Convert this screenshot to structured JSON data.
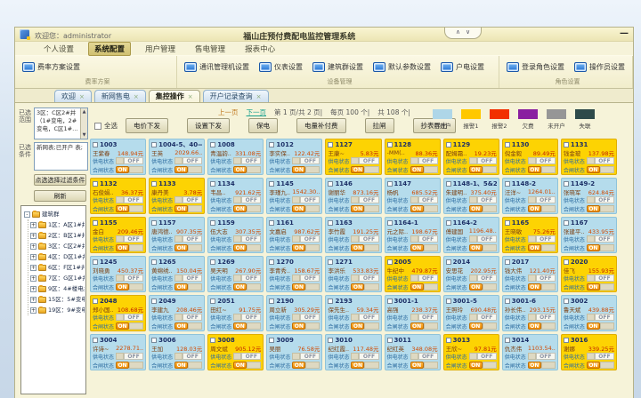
{
  "window": {
    "welcome": "欢迎您：administrator",
    "title": "福山庄预付费配电监控管理系统",
    "controls": {
      "collapse": "∧",
      "expand": "∨",
      "minimize": "—"
    }
  },
  "menu": {
    "items": [
      {
        "label": "个人设置",
        "active": false
      },
      {
        "label": "系统配置",
        "active": true
      },
      {
        "label": "用户管理",
        "active": false
      },
      {
        "label": "售电管理",
        "active": false
      },
      {
        "label": "报表中心",
        "active": false
      }
    ]
  },
  "ribbon": {
    "groups": [
      {
        "label": "费率方案",
        "buttons": [
          "费率方案设置"
        ]
      },
      {
        "label": "设备管理",
        "buttons": [
          "通讯管理机设置",
          "仪表设置",
          "建筑群设置",
          "默认参数设置",
          "户电设置"
        ]
      },
      {
        "label": "角色设置",
        "buttons": [
          "登录角色设置",
          "操作员设置"
        ]
      }
    ]
  },
  "tabs": [
    {
      "label": "欢迎",
      "active": false
    },
    {
      "label": "新网售电",
      "active": false
    },
    {
      "label": "集控操作",
      "active": true
    },
    {
      "label": "开户记录查询",
      "active": false
    }
  ],
  "sidebar": {
    "range_label": "已选范围",
    "range_lines": [
      "3区：C区2#井",
      "（1#变电，2#",
      "变电，C区1#…"
    ],
    "filter_label": "已选条件",
    "filter_text": "新网表;已开户 表;",
    "filter_button": "点选选择过滤条件",
    "refresh_button": "刷新",
    "tree": {
      "root": "建筑群",
      "nodes": [
        "1区：A区1#井",
        "2区：B区1#井(B区1",
        "3区：C区2#井（1#",
        "4区：D区1#井（D区",
        "6区：F区1#井（F区",
        "7区：G区1#井",
        "9区：4#楼电井（4#",
        "15区：5#变电站（3#",
        "19区：9#变电站（2"
      ]
    }
  },
  "toolbar": {
    "pagination": {
      "prev": "上一页",
      "next": "下一页",
      "page_info": "第 1 页/共 2 页|",
      "per_page": "每页 100 个|",
      "total": "共 108 个|"
    },
    "select_all": "全选",
    "buttons": [
      "电价下发",
      "设置下发",
      "保电",
      "电量补付费",
      "拉闸",
      "抄表导出"
    ]
  },
  "legend": {
    "items": [
      {
        "label": "已开户",
        "color": "#aed6e8"
      },
      {
        "label": "报警1",
        "color": "#ffc800"
      },
      {
        "label": "报警2",
        "color": "#f23000"
      },
      {
        "label": "欠费",
        "color": "#8a1fa0"
      },
      {
        "label": "未开户",
        "color": "#969696"
      },
      {
        "label": "失联",
        "color": "#2e4a4a"
      }
    ]
  },
  "meters": {
    "labels": {
      "supply": "供电状态",
      "breaker": "合闸状态",
      "on": "ON",
      "off": "OFF"
    },
    "palette": {
      "open": "#b5dcec",
      "alarm": "#fdd303"
    },
    "cards": [
      {
        "room": "1003",
        "name": "王紫春",
        "amount": "148.94元",
        "state": "open"
      },
      {
        "room": "1004-5、40—",
        "name": "王英",
        "amount": "2029.66..",
        "state": "open"
      },
      {
        "room": "1008",
        "name": "青温韵..",
        "amount": "331.08元",
        "state": "open"
      },
      {
        "room": "1012",
        "name": "李实保..",
        "amount": "122.42元",
        "state": "open"
      },
      {
        "room": "1127",
        "name": "王康~",
        "amount": "5.83元",
        "state": "alarm"
      },
      {
        "room": "1128",
        "name": "-MM(..",
        "amount": "88.36元",
        "state": "alarm"
      },
      {
        "room": "1129",
        "name": "配姆霜..",
        "amount": "19.23元",
        "state": "alarm"
      },
      {
        "room": "1130",
        "name": "倪金毅",
        "amount": "89.49元",
        "state": "alarm"
      },
      {
        "room": "1131",
        "name": "钱金玻",
        "amount": "137.98元",
        "state": "alarm"
      },
      {
        "room": "1132",
        "name": "石俊娟..",
        "amount": "36.37元",
        "state": "alarm"
      },
      {
        "room": "1133",
        "name": "康丹美",
        "amount": "3.78元",
        "state": "alarm"
      },
      {
        "room": "1134",
        "name": "韦昌..",
        "amount": "921.62元",
        "state": "open"
      },
      {
        "room": "1145",
        "name": "李瑾九..",
        "amount": "1542.30..",
        "state": "open"
      },
      {
        "room": "1146",
        "name": "谢丽华",
        "amount": "873.16元",
        "state": "open"
      },
      {
        "room": "1147",
        "name": "杨帆",
        "amount": "685.52元",
        "state": "open"
      },
      {
        "room": "1148-1、5&2",
        "name": "朱建明..",
        "amount": "375.40元",
        "state": "open"
      },
      {
        "room": "1148-2",
        "name": "汪洋~",
        "amount": "1264.01..",
        "state": "open"
      },
      {
        "room": "1149-2",
        "name": "张晓军",
        "amount": "624.84元",
        "state": "open"
      },
      {
        "room": "1155",
        "name": "金白",
        "amount": "209.46元",
        "state": "alarm"
      },
      {
        "room": "1157",
        "name": "唐鸿德..",
        "amount": "907.35元",
        "state": "open"
      },
      {
        "room": "1159",
        "name": "伍大志",
        "amount": "307.35元",
        "state": "open"
      },
      {
        "room": "1161",
        "name": "文嘉启",
        "amount": "987.62元",
        "state": "open"
      },
      {
        "room": "1163",
        "name": "李竹霞",
        "amount": "191.25元",
        "state": "open"
      },
      {
        "room": "1164-1",
        "name": "元之际..",
        "amount": "198.67元",
        "state": "open"
      },
      {
        "room": "1164-2",
        "name": "傅建国",
        "amount": "1196.48..",
        "state": "open"
      },
      {
        "room": "1165",
        "name": "王晓敏",
        "amount": "75.26元",
        "state": "alarm"
      },
      {
        "room": "1167",
        "name": "张建平..",
        "amount": "433.95元",
        "state": "open"
      },
      {
        "room": "1245",
        "name": "刘晓勇",
        "amount": "450.37元",
        "state": "open"
      },
      {
        "room": "1265",
        "name": "黄绵绣..",
        "amount": "150.04元",
        "state": "open"
      },
      {
        "room": "1269",
        "name": "吴天明",
        "amount": "267.90元",
        "state": "open"
      },
      {
        "room": "1270",
        "name": "李青秀..",
        "amount": "158.67元",
        "state": "open"
      },
      {
        "room": "1271",
        "name": "李洪乐",
        "amount": "533.83元",
        "state": "open"
      },
      {
        "room": "2005",
        "name": "牛纪中",
        "amount": "479.87元",
        "state": "alarm"
      },
      {
        "room": "2014",
        "name": "安思花",
        "amount": "202.95元",
        "state": "open"
      },
      {
        "room": "2017",
        "name": "钱大伟",
        "amount": "121.40元",
        "state": "open"
      },
      {
        "room": "2020",
        "name": "佳飞",
        "amount": "155.93元",
        "state": "alarm"
      },
      {
        "room": "2048",
        "name": "郑小国..",
        "amount": "108.68元",
        "state": "alarm"
      },
      {
        "room": "2049",
        "name": "李建九",
        "amount": "208.46元",
        "state": "open"
      },
      {
        "room": "2051",
        "name": "田红~",
        "amount": "91.75元",
        "state": "open"
      },
      {
        "room": "2190",
        "name": "周立新",
        "amount": "305.29元",
        "state": "open"
      },
      {
        "room": "2193",
        "name": "保先生..",
        "amount": "59.34元",
        "state": "open"
      },
      {
        "room": "3001-1",
        "name": "高强",
        "amount": "238.37元",
        "state": "open"
      },
      {
        "room": "3001-5",
        "name": "王照玲",
        "amount": "690.48元",
        "state": "open"
      },
      {
        "room": "3001-6",
        "name": "孙长伟..",
        "amount": "293.15元",
        "state": "open"
      },
      {
        "room": "3002",
        "name": "鲁天斌",
        "amount": "439.88元",
        "state": "open"
      },
      {
        "room": "3004",
        "name": "许诗~",
        "amount": "2278.71..",
        "state": "open"
      },
      {
        "room": "3006",
        "name": "王加",
        "amount": "128.03元",
        "state": "open"
      },
      {
        "room": "3008",
        "name": "周文斌",
        "amount": "905.12元",
        "state": "alarm"
      },
      {
        "room": "3009",
        "name": "吴丽",
        "amount": "76.58元",
        "state": "open"
      },
      {
        "room": "3010",
        "name": "纪红霞..",
        "amount": "117.48元",
        "state": "open"
      },
      {
        "room": "3011",
        "name": "纪红英",
        "amount": "348.08元",
        "state": "open"
      },
      {
        "room": "3013",
        "name": "王欣~",
        "amount": "97.81元",
        "state": "alarm"
      },
      {
        "room": "3014",
        "name": "仇杰伟",
        "amount": "1103.54..",
        "state": "open"
      },
      {
        "room": "3016",
        "name": "谢娜",
        "amount": "339.25元",
        "state": "alarm"
      }
    ]
  }
}
